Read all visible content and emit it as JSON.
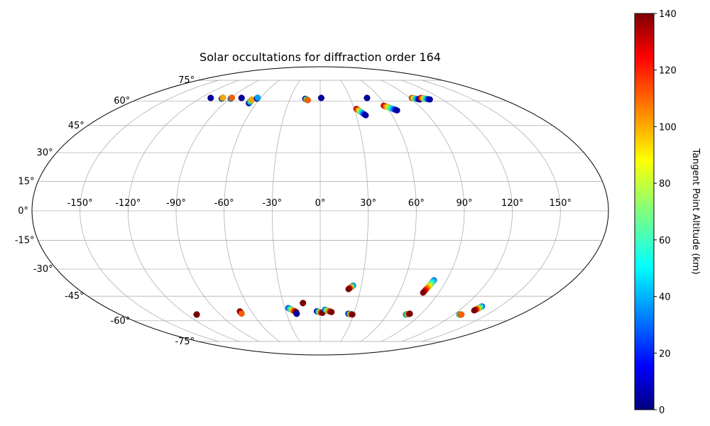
{
  "chart_data": {
    "type": "scatter",
    "projection": "mollweide",
    "title": "Solar occultations for diffraction order 164",
    "x_tick_labels": [
      "-150°",
      "-120°",
      "-90°",
      "-60°",
      "-30°",
      "0°",
      "30°",
      "60°",
      "90°",
      "120°",
      "150°"
    ],
    "x_tick_values": [
      -150,
      -120,
      -90,
      -60,
      -30,
      0,
      30,
      60,
      90,
      120,
      150
    ],
    "y_tick_labels": [
      "-75°",
      "-60°",
      "-45°",
      "-30°",
      "-15°",
      "0°",
      "15°",
      "30°",
      "45°",
      "60°",
      "75°"
    ],
    "y_tick_values": [
      -75,
      -60,
      -45,
      -30,
      -15,
      0,
      15,
      30,
      45,
      60,
      75
    ],
    "grid": true,
    "colorbar": {
      "label": "Tangent Point Altitude (km)",
      "range": [
        0,
        140
      ],
      "tick_labels": [
        "0",
        "20",
        "40",
        "60",
        "80",
        "100",
        "120",
        "140"
      ],
      "tick_values": [
        0,
        20,
        40,
        60,
        80,
        100,
        120,
        140
      ],
      "colormap": "jet"
    },
    "occultation_tracks": [
      {
        "lon": -110,
        "lat": 62,
        "end_lon": -110,
        "end_lat": 62,
        "c_start": 5,
        "c_end": 5
      },
      {
        "lon": -98,
        "lat": 61.5,
        "end_lon": -98,
        "end_lat": 62.2,
        "c_start": 5,
        "c_end": 100
      },
      {
        "lon": -89,
        "lat": 61.5,
        "end_lon": -89,
        "end_lat": 62.2,
        "c_start": 5,
        "c_end": 110
      },
      {
        "lon": -79,
        "lat": 62,
        "end_lon": -79,
        "end_lat": 62,
        "c_start": 5,
        "c_end": 5
      },
      {
        "lon": -67,
        "lat": 58.5,
        "end_lon": -67,
        "end_lat": 61,
        "c_start": 5,
        "c_end": 100
      },
      {
        "lon": -63,
        "lat": 61.5,
        "end_lon": -63,
        "end_lat": 62.2,
        "c_start": 5,
        "c_end": 40
      },
      {
        "lon": -15,
        "lat": 61.5,
        "end_lon": -12,
        "end_lat": 60.5,
        "c_start": 5,
        "c_end": 110
      },
      {
        "lon": 1,
        "lat": 62,
        "end_lon": 1,
        "end_lat": 62,
        "c_start": 5,
        "c_end": 5
      },
      {
        "lon": 32,
        "lat": 55,
        "end_lon": 38,
        "end_lat": 51,
        "c_start": 130,
        "c_end": 5
      },
      {
        "lon": 47,
        "lat": 62,
        "end_lon": 47,
        "end_lat": 62,
        "c_start": 5,
        "c_end": 5
      },
      {
        "lon": 58,
        "lat": 57,
        "end_lon": 67,
        "end_lat": 54,
        "c_start": 130,
        "c_end": 5
      },
      {
        "lon": 92,
        "lat": 62,
        "end_lon": 98,
        "end_lat": 61,
        "c_start": 120,
        "c_end": 5
      },
      {
        "lon": 101,
        "lat": 62,
        "end_lon": 108,
        "end_lat": 61,
        "c_start": 130,
        "c_end": 5
      },
      {
        "lon": 24,
        "lat": -39,
        "end_lon": 21,
        "end_lat": -41,
        "c_start": 30,
        "c_end": 140
      },
      {
        "lon": 81,
        "lat": -36,
        "end_lon": 78,
        "end_lat": -43,
        "c_start": 35,
        "c_end": 140
      },
      {
        "lon": -14,
        "lat": -49,
        "end_lon": -14,
        "end_lat": -49,
        "c_start": 140,
        "c_end": 140
      },
      {
        "lon": -27,
        "lat": -52,
        "end_lon": -21,
        "end_lat": -54.5,
        "c_start": 25,
        "c_end": 140
      },
      {
        "lon": -21,
        "lat": -55.5,
        "end_lon": -21,
        "end_lat": -55.5,
        "c_start": 5,
        "c_end": 5
      },
      {
        "lon": -3,
        "lat": -54,
        "end_lon": 2,
        "end_lat": -55,
        "c_start": 5,
        "c_end": 140
      },
      {
        "lon": 4,
        "lat": -53,
        "end_lon": 10,
        "end_lat": -54.5,
        "c_start": 30,
        "c_end": 140
      },
      {
        "lon": 25,
        "lat": -55.5,
        "end_lon": 29,
        "end_lat": -56,
        "c_start": 5,
        "c_end": 140
      },
      {
        "lon": -70,
        "lat": -54,
        "end_lon": -70,
        "end_lat": -55.5,
        "c_start": 140,
        "c_end": 110
      },
      {
        "lon": -111,
        "lat": -56,
        "end_lon": -111,
        "end_lat": -56,
        "c_start": 140,
        "c_end": 140
      },
      {
        "lon": 77,
        "lat": -56,
        "end_lon": 80,
        "end_lat": -55.5,
        "c_start": 30,
        "c_end": 140
      },
      {
        "lon": 125,
        "lat": -56,
        "end_lon": 127,
        "end_lat": -56,
        "c_start": 40,
        "c_end": 110
      },
      {
        "lon": 135,
        "lat": -51,
        "end_lon": 133,
        "end_lat": -53.5,
        "c_start": 30,
        "c_end": 140
      }
    ]
  }
}
